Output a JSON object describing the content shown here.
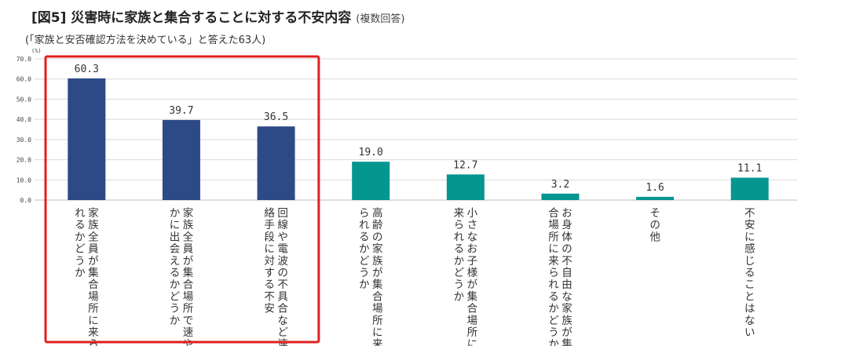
{
  "chart_data": {
    "type": "bar",
    "title": "[図5] 災害時に家族と集合することに対する不安内容",
    "title_note": "(複数回答)",
    "subtitle": "(「家族と安否確認方法を決めている」と答えた63人)",
    "ylabel": "(%)",
    "ylim": [
      0,
      70
    ],
    "yticks": [
      "0.0",
      "10.0",
      "20.0",
      "30.0",
      "40.0",
      "50.0",
      "60.0",
      "70.0"
    ],
    "categories": [
      "家族全員が集合場所に来られるかどうか",
      "家族全員が集合場所で速やかに出会えるかどうか",
      "回線や電波の不具合など連絡手段に対する不安",
      "高齢の家族が集合場所に来られるかどうか",
      "小さなお子様が集合場所に来られるかどうか",
      "お身体の不自由な家族が集合場所に来られるかどうか",
      "その他",
      "不安に感じることはない"
    ],
    "values": [
      60.3,
      39.7,
      36.5,
      19.0,
      12.7,
      3.2,
      1.6,
      11.1
    ],
    "value_labels": [
      "60.3",
      "39.7",
      "36.5",
      "19.0",
      "12.7",
      "3.2",
      "1.6",
      "11.1"
    ],
    "highlighted": [
      0,
      1,
      2
    ],
    "colors": {
      "highlighted_bar": "#2e4a86",
      "other_bar": "#05968f",
      "highlight_box": "#e0201f"
    }
  }
}
